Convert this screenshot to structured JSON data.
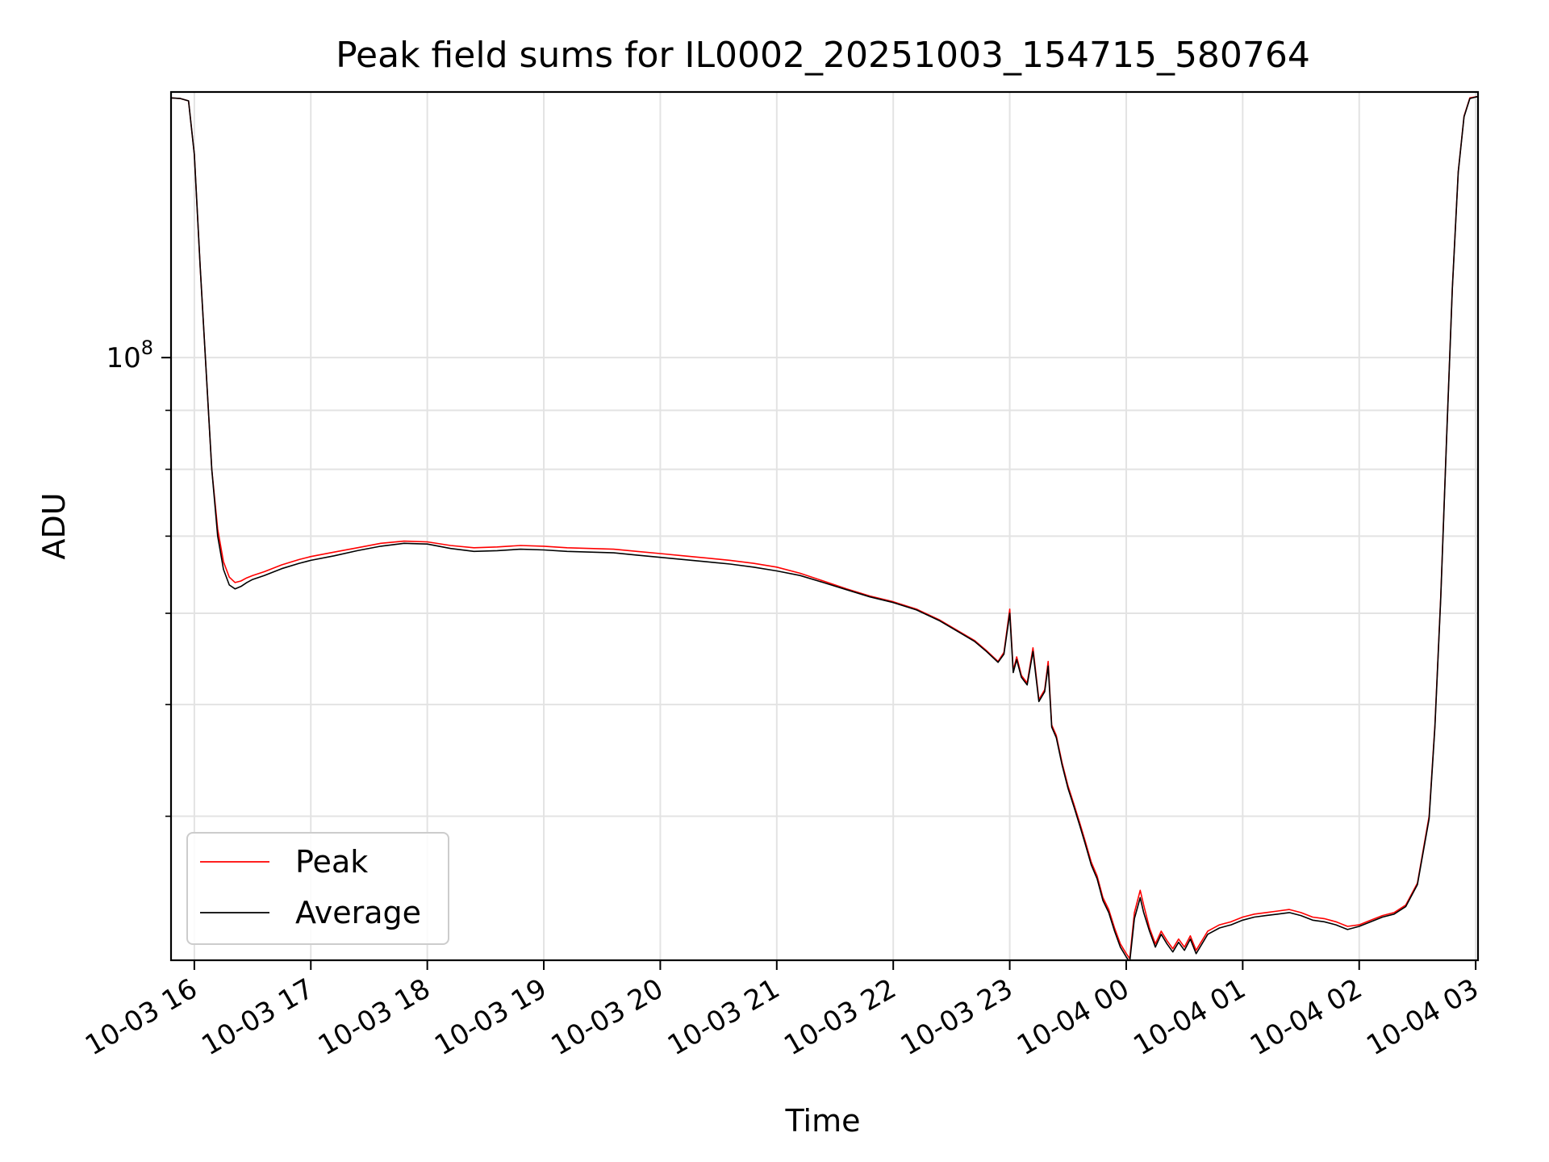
{
  "chart_data": {
    "type": "line",
    "title": "Peak field sums for IL0002_20251003_154715_580764",
    "xlabel": "Time",
    "ylabel": "ADU",
    "yscale": "log",
    "grid": true,
    "legend_location": "lower-left",
    "x_unit": "hours since 2025-10-03 15:00 (local time)",
    "xlim": [
      0.8,
      12.02
    ],
    "ylim": [
      30000000,
      170000000
    ],
    "y_tick_labels": [
      {
        "value": 100000000,
        "label": "10",
        "exponent": "8"
      }
    ],
    "y_minor_ticks": [
      40000000,
      50000000,
      60000000,
      70000000,
      80000000,
      90000000,
      200000000
    ],
    "x_ticks": [
      {
        "value": 1,
        "label": "10-03 16"
      },
      {
        "value": 2,
        "label": "10-03 17"
      },
      {
        "value": 3,
        "label": "10-03 18"
      },
      {
        "value": 4,
        "label": "10-03 19"
      },
      {
        "value": 5,
        "label": "10-03 20"
      },
      {
        "value": 6,
        "label": "10-03 21"
      },
      {
        "value": 7,
        "label": "10-03 22"
      },
      {
        "value": 8,
        "label": "10-03 23"
      },
      {
        "value": 9,
        "label": "10-04 00"
      },
      {
        "value": 10,
        "label": "10-04 01"
      },
      {
        "value": 11,
        "label": "10-04 02"
      },
      {
        "value": 12,
        "label": "10-04 03"
      }
    ],
    "series": [
      {
        "name": "Peak",
        "color": "#ff0000",
        "x": [
          0.8,
          0.88,
          0.95,
          1.0,
          1.05,
          1.1,
          1.15,
          1.2,
          1.25,
          1.3,
          1.35,
          1.4,
          1.45,
          1.5,
          1.6,
          1.75,
          1.9,
          2.0,
          2.2,
          2.4,
          2.6,
          2.8,
          3.0,
          3.2,
          3.4,
          3.6,
          3.8,
          4.0,
          4.2,
          4.4,
          4.6,
          4.8,
          5.0,
          5.2,
          5.4,
          5.6,
          5.8,
          6.0,
          6.2,
          6.4,
          6.6,
          6.8,
          7.0,
          7.2,
          7.4,
          7.6,
          7.7,
          7.8,
          7.9,
          7.95,
          8.0,
          8.03,
          8.06,
          8.1,
          8.15,
          8.2,
          8.25,
          8.3,
          8.33,
          8.36,
          8.4,
          8.45,
          8.5,
          8.55,
          8.6,
          8.65,
          8.7,
          8.75,
          8.8,
          8.85,
          8.9,
          8.95,
          9.0,
          9.03,
          9.07,
          9.12,
          9.15,
          9.2,
          9.25,
          9.3,
          9.35,
          9.4,
          9.45,
          9.5,
          9.55,
          9.6,
          9.7,
          9.8,
          9.9,
          10.0,
          10.1,
          10.2,
          10.3,
          10.4,
          10.5,
          10.6,
          10.7,
          10.8,
          10.9,
          11.0,
          11.1,
          11.2,
          11.3,
          11.4,
          11.5,
          11.6,
          11.65,
          11.7,
          11.75,
          11.8,
          11.85,
          11.9,
          11.95,
          12.02
        ],
        "y": [
          168000000,
          167800000,
          167000000,
          150000000,
          120000000,
          98000000,
          80000000,
          71000000,
          66500000,
          64500000,
          63800000,
          64000000,
          64400000,
          64700000,
          65200000,
          66100000,
          66800000,
          67200000,
          67800000,
          68400000,
          69000000,
          69300000,
          69200000,
          68700000,
          68400000,
          68500000,
          68700000,
          68600000,
          68400000,
          68300000,
          68200000,
          67900000,
          67600000,
          67300000,
          67000000,
          66700000,
          66300000,
          65800000,
          65000000,
          64000000,
          63000000,
          62100000,
          61400000,
          60500000,
          59200000,
          57600000,
          56800000,
          55700000,
          54500000,
          55500000,
          60500000,
          53500000,
          55000000,
          53000000,
          52200000,
          56000000,
          50500000,
          51500000,
          54500000,
          48000000,
          47000000,
          44500000,
          42500000,
          41000000,
          39500000,
          38000000,
          36500000,
          35500000,
          34000000,
          33200000,
          32000000,
          31000000,
          30400000,
          30100000,
          33000000,
          34500000,
          33500000,
          32000000,
          31000000,
          31800000,
          31200000,
          30700000,
          31300000,
          30800000,
          31500000,
          30600000,
          31800000,
          32200000,
          32400000,
          32700000,
          32900000,
          33000000,
          33100000,
          33200000,
          33000000,
          32700000,
          32600000,
          32400000,
          32100000,
          32200000,
          32500000,
          32800000,
          33000000,
          33500000,
          35000000,
          40000000,
          48000000,
          62000000,
          85000000,
          115000000,
          145000000,
          162000000,
          168000000,
          168500000
        ]
      },
      {
        "name": "Average",
        "color": "#000000",
        "x": [
          0.8,
          0.88,
          0.95,
          1.0,
          1.05,
          1.1,
          1.15,
          1.2,
          1.25,
          1.3,
          1.35,
          1.4,
          1.45,
          1.5,
          1.6,
          1.75,
          1.9,
          2.0,
          2.2,
          2.4,
          2.6,
          2.8,
          3.0,
          3.2,
          3.4,
          3.6,
          3.8,
          4.0,
          4.2,
          4.4,
          4.6,
          4.8,
          5.0,
          5.2,
          5.4,
          5.6,
          5.8,
          6.0,
          6.2,
          6.4,
          6.6,
          6.8,
          7.0,
          7.2,
          7.4,
          7.6,
          7.7,
          7.8,
          7.9,
          7.95,
          8.0,
          8.03,
          8.06,
          8.1,
          8.15,
          8.2,
          8.25,
          8.3,
          8.33,
          8.36,
          8.4,
          8.45,
          8.5,
          8.55,
          8.6,
          8.65,
          8.7,
          8.75,
          8.8,
          8.85,
          8.9,
          8.95,
          9.0,
          9.03,
          9.07,
          9.12,
          9.15,
          9.2,
          9.25,
          9.3,
          9.35,
          9.4,
          9.45,
          9.5,
          9.55,
          9.6,
          9.7,
          9.8,
          9.9,
          10.0,
          10.1,
          10.2,
          10.3,
          10.4,
          10.5,
          10.6,
          10.7,
          10.8,
          10.9,
          11.0,
          11.1,
          11.2,
          11.3,
          11.4,
          11.5,
          11.6,
          11.65,
          11.7,
          11.75,
          11.8,
          11.85,
          11.9,
          11.95,
          12.02
        ],
        "y": [
          168000000,
          167800000,
          167000000,
          150000000,
          120000000,
          98000000,
          80000000,
          70000000,
          65500000,
          63500000,
          63000000,
          63300000,
          63800000,
          64200000,
          64700000,
          65600000,
          66300000,
          66700000,
          67300000,
          68000000,
          68600000,
          69000000,
          68900000,
          68300000,
          67900000,
          68000000,
          68200000,
          68100000,
          67900000,
          67800000,
          67700000,
          67400000,
          67100000,
          66800000,
          66500000,
          66200000,
          65800000,
          65300000,
          64700000,
          63800000,
          62900000,
          62000000,
          61300000,
          60400000,
          59100000,
          57500000,
          56700000,
          55600000,
          54400000,
          55300000,
          60000000,
          53300000,
          54700000,
          52800000,
          52000000,
          55600000,
          50300000,
          51300000,
          54000000,
          47800000,
          46800000,
          44300000,
          42300000,
          40800000,
          39300000,
          37800000,
          36300000,
          35300000,
          33800000,
          33000000,
          31800000,
          30800000,
          30200000,
          29900000,
          32600000,
          34000000,
          33000000,
          31800000,
          30800000,
          31600000,
          31000000,
          30500000,
          31100000,
          30600000,
          31300000,
          30400000,
          31600000,
          32000000,
          32200000,
          32500000,
          32700000,
          32800000,
          32900000,
          33000000,
          32800000,
          32500000,
          32400000,
          32200000,
          31900000,
          32100000,
          32400000,
          32700000,
          32900000,
          33400000,
          34900000,
          39800000,
          47800000,
          61800000,
          84800000,
          114800000,
          144800000,
          161800000,
          167800000,
          168500000
        ]
      }
    ]
  }
}
